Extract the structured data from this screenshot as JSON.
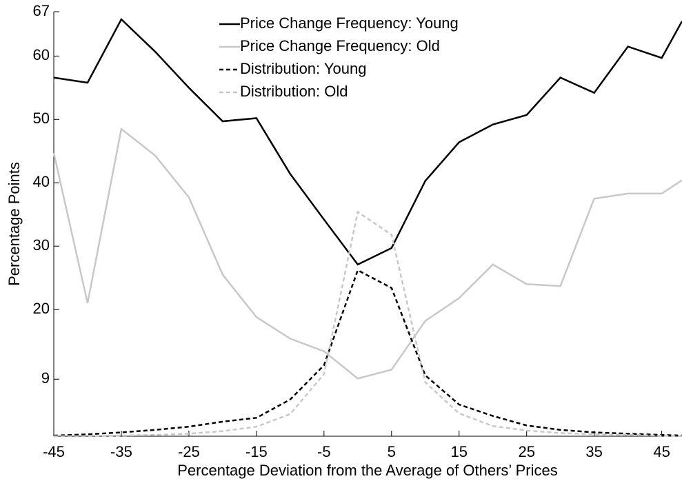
{
  "chart_data": {
    "type": "line",
    "xlabel": "Percentage Deviation from the Average of Others’ Prices",
    "ylabel": "Percentage Points",
    "x": [
      -45,
      -40,
      -35,
      -30,
      -25,
      -20,
      -15,
      -10,
      -5,
      0,
      5,
      10,
      15,
      20,
      25,
      30,
      35,
      40,
      45,
      48
    ],
    "series": [
      {
        "name": "Price Change Frequency: Young",
        "color": "#000000",
        "dash": "solid",
        "values": [
          56.6,
          55.8,
          65.8,
          60.7,
          55.0,
          49.7,
          50.2,
          41.4,
          34.2,
          27.1,
          29.7,
          40.3,
          46.4,
          49.2,
          50.7,
          56.6,
          54.2,
          61.5,
          59.7,
          65.5
        ]
      },
      {
        "name": "Price Change Frequency: Old",
        "color": "#c8c8c8",
        "dash": "solid",
        "values": [
          44.7,
          21.0,
          48.5,
          44.3,
          37.7,
          25.5,
          18.8,
          15.4,
          13.4,
          9.1,
          10.5,
          18.2,
          21.8,
          27.1,
          24.0,
          23.7,
          37.5,
          38.3,
          38.3,
          40.4
        ]
      },
      {
        "name": "Distribution: Young",
        "color": "#000000",
        "dash": "dashed",
        "values": [
          0.1,
          0.3,
          0.6,
          1.0,
          1.5,
          2.3,
          2.9,
          5.8,
          11.2,
          26.2,
          23.4,
          9.6,
          5.0,
          3.2,
          1.7,
          1.0,
          0.6,
          0.4,
          0.2,
          0.1
        ]
      },
      {
        "name": "Distribution: Old",
        "color": "#c8c8c8",
        "dash": "dashed",
        "values": [
          0.0,
          0.0,
          0.1,
          0.2,
          0.4,
          0.8,
          1.5,
          3.5,
          9.8,
          35.4,
          31.8,
          8.5,
          3.6,
          1.6,
          0.9,
          0.5,
          0.3,
          0.2,
          0.1,
          0.0
        ]
      }
    ],
    "xlim": [
      -45,
      48
    ],
    "xticks": [
      -45,
      -35,
      -25,
      -15,
      -5,
      5,
      15,
      25,
      35,
      45
    ],
    "ylim": [
      0,
      67
    ],
    "yticks": [
      9,
      20,
      30,
      40,
      50,
      60,
      67
    ],
    "grid": false,
    "legend": "top"
  }
}
